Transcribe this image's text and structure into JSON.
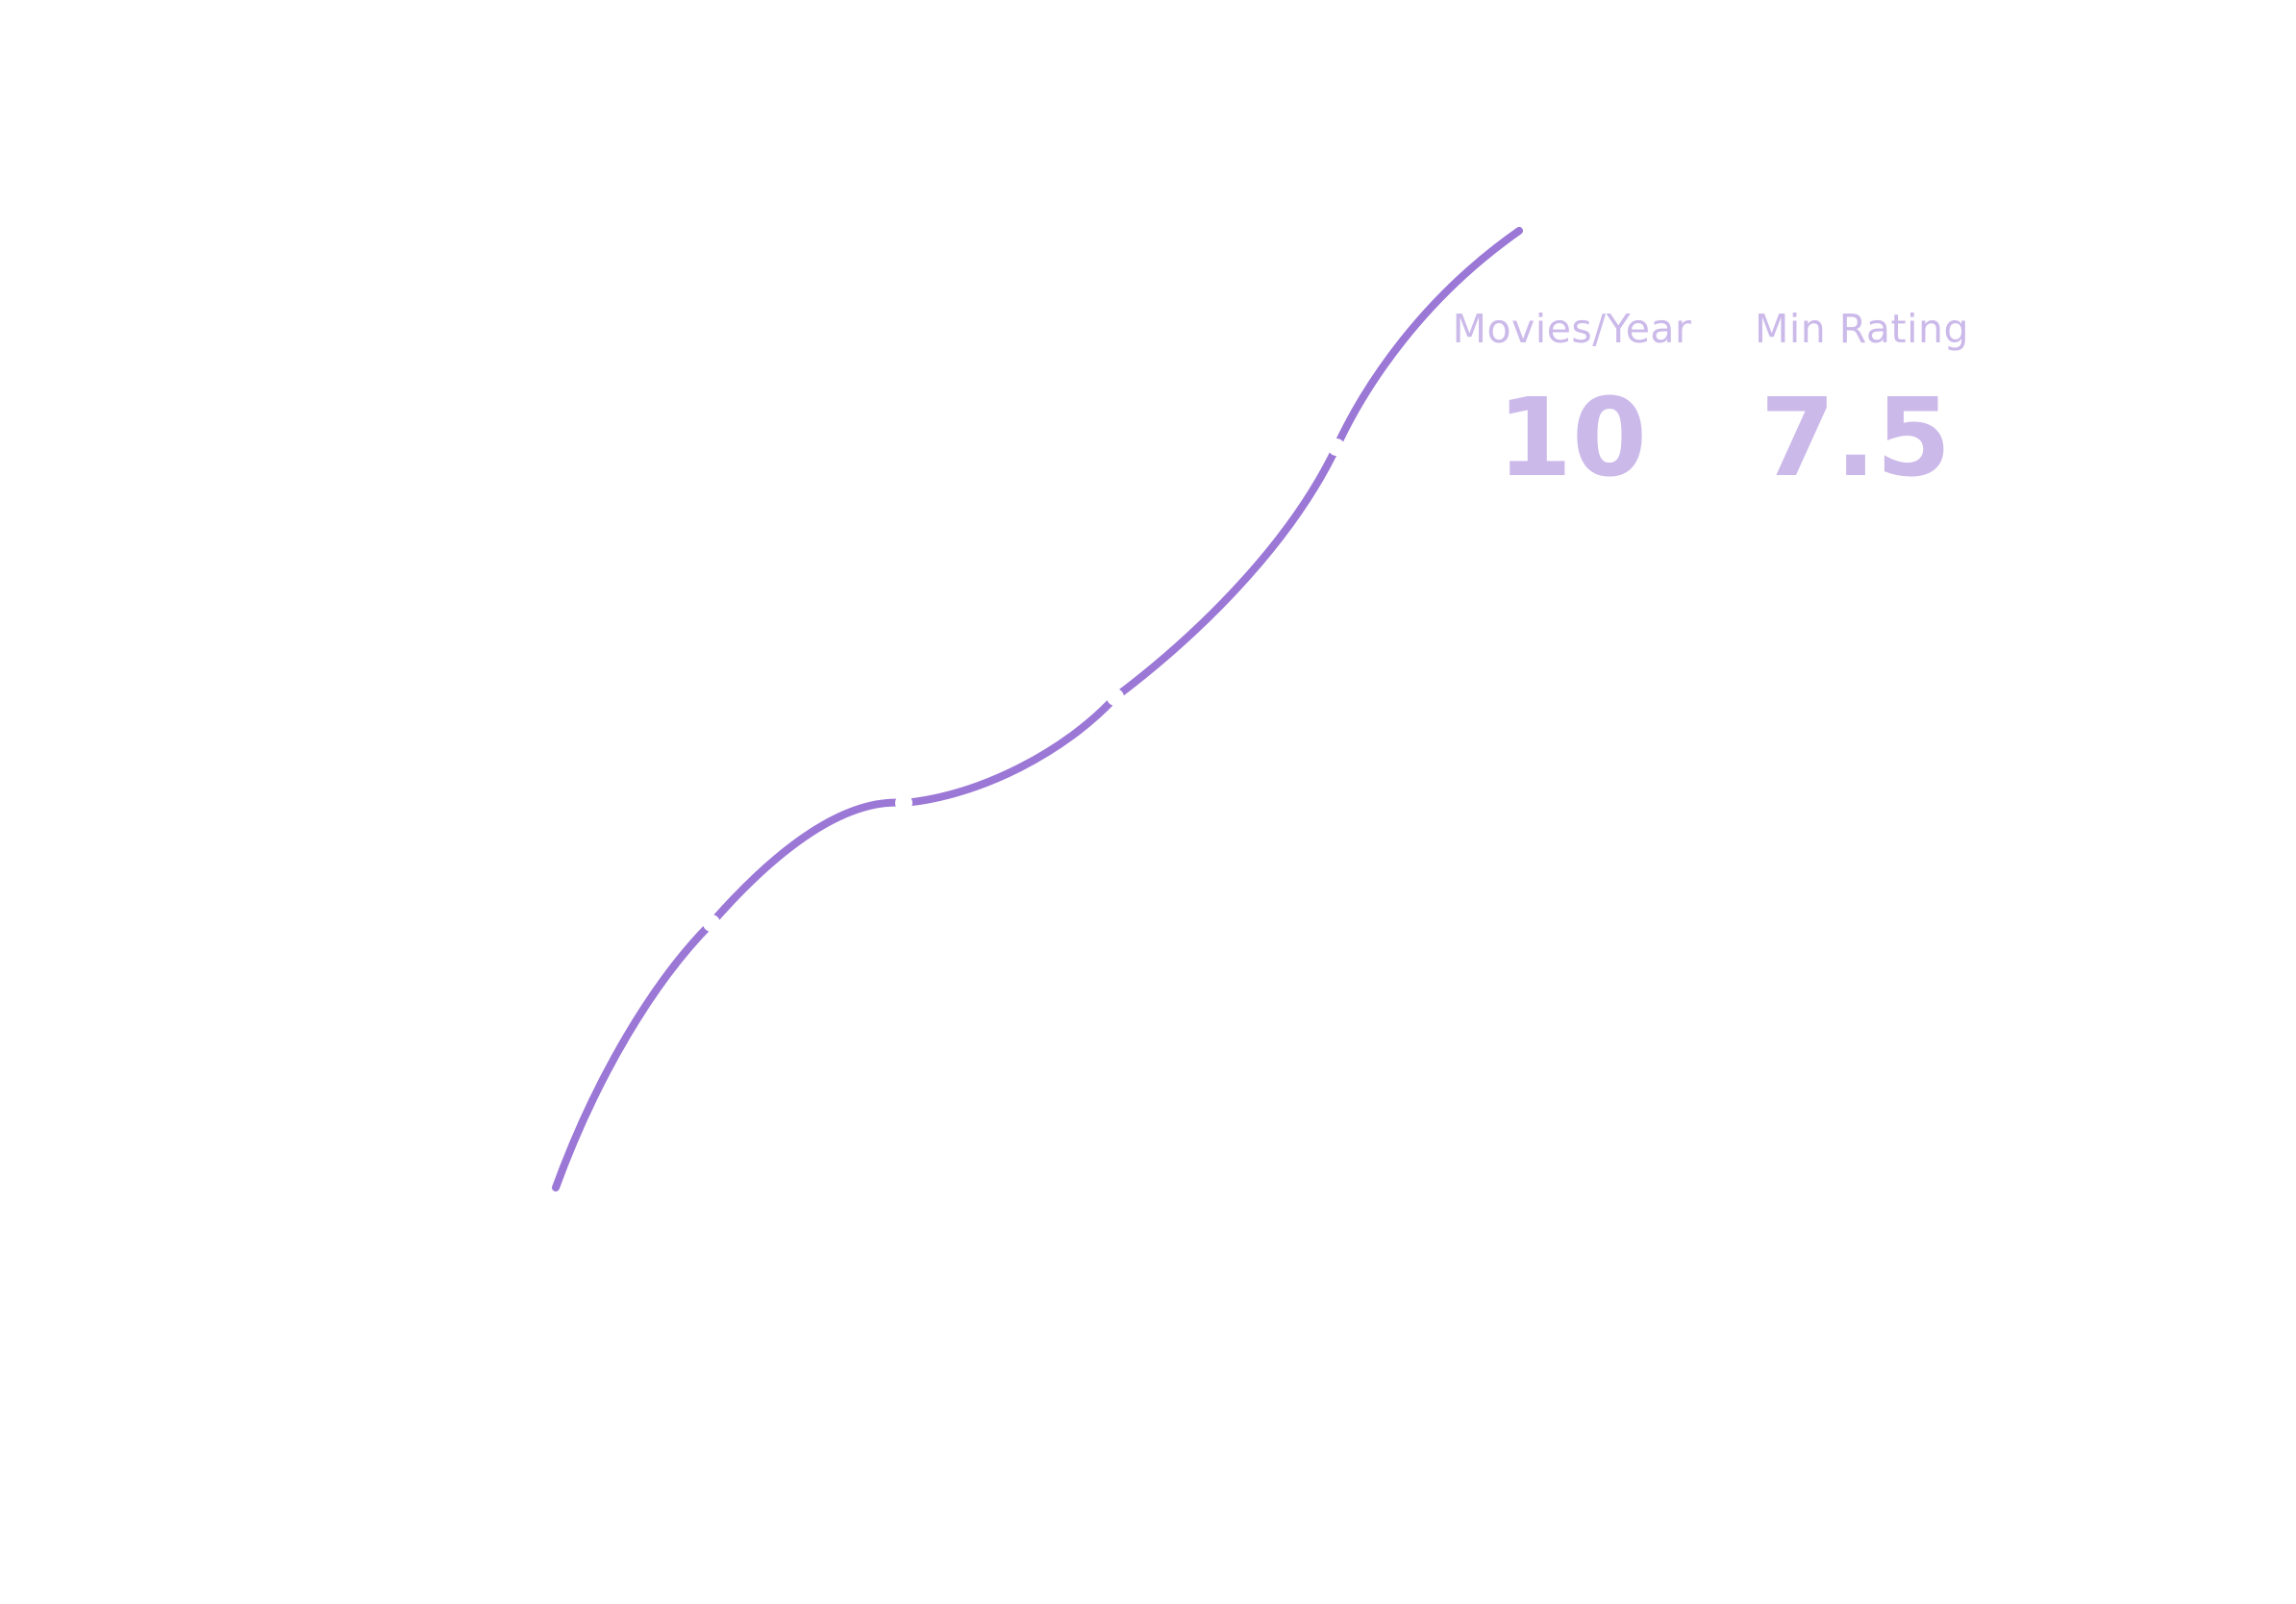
{
  "colors": {
    "curve": "#9b77d6",
    "stat_text": "#cbb9ea",
    "node_fill": "#ffffff"
  },
  "curve": {
    "type": "path-with-nodes",
    "node_count": 6
  },
  "stats": {
    "movies_per_year": {
      "label": "Movies/Year",
      "value": "10"
    },
    "min_rating": {
      "label": "Min Rating",
      "value": "7.5"
    }
  }
}
